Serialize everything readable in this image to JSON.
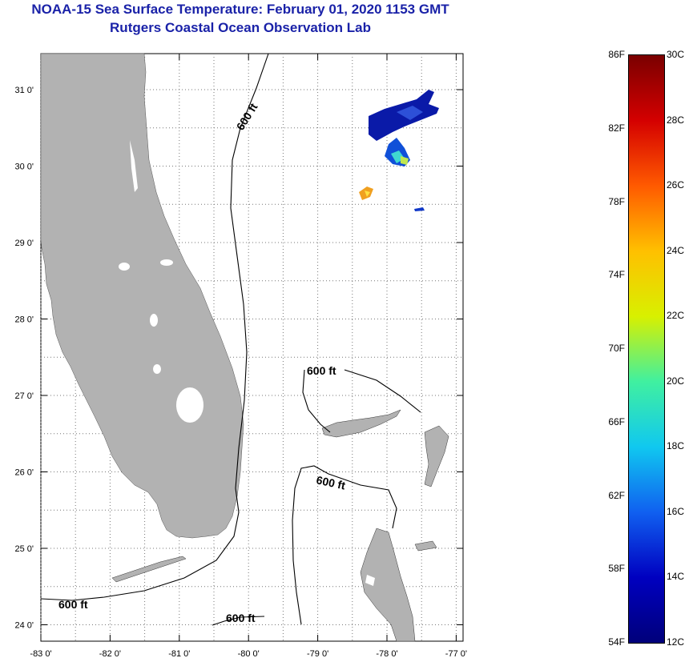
{
  "title_line1": "NOAA-15 Sea Surface Temperature:  February 01, 2020 1153 GMT",
  "title_line2": "Rutgers Coastal Ocean Observation Lab",
  "lon_ticks": [
    {
      "value": -83,
      "label": "-83 0'"
    },
    {
      "value": -82,
      "label": "-82 0'"
    },
    {
      "value": -81,
      "label": "-81 0'"
    },
    {
      "value": -80,
      "label": "-80 0'"
    },
    {
      "value": -79,
      "label": "-79 0'"
    },
    {
      "value": -78,
      "label": "-78 0'"
    },
    {
      "value": -77,
      "label": "-77 0'"
    }
  ],
  "lat_ticks": [
    {
      "value": 31,
      "label": "31 0'"
    },
    {
      "value": 30,
      "label": "30 0'"
    },
    {
      "value": 29,
      "label": "29 0'"
    },
    {
      "value": 28,
      "label": "28 0'"
    },
    {
      "value": 27,
      "label": "27 0'"
    },
    {
      "value": 26,
      "label": "26 0'"
    },
    {
      "value": 25,
      "label": "25 0'"
    },
    {
      "value": 24,
      "label": "24 0'"
    }
  ],
  "contour_label": "600 ft",
  "colorbar": {
    "fahrenheit_labels": [
      "86F",
      "82F",
      "78F",
      "74F",
      "70F",
      "66F",
      "62F",
      "58F",
      "54F"
    ],
    "celsius_labels": [
      "30C",
      "28C",
      "26C",
      "24C",
      "22C",
      "20C",
      "18C",
      "16C",
      "14C",
      "12C"
    ],
    "colors": [
      "#7a0000",
      "#d40000",
      "#ff5a00",
      "#ffc000",
      "#d8f000",
      "#40f0a0",
      "#10c8f0",
      "#1060f0",
      "#0000c0",
      "#00007a"
    ]
  },
  "colors": {
    "land": "#b2b2b2",
    "title": "#1a22a8"
  }
}
